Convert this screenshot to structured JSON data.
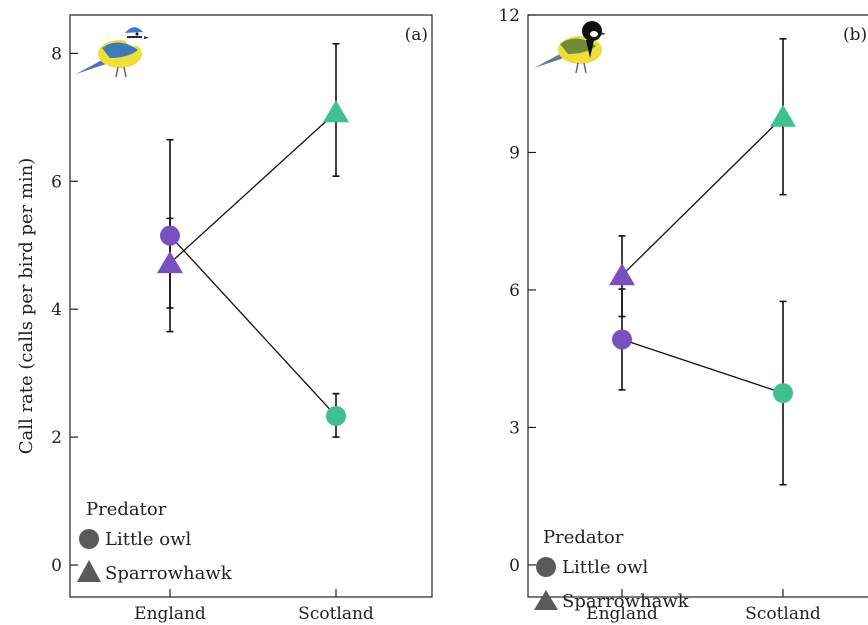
{
  "chart_data": [
    {
      "type": "scatter",
      "panel_label": "(a)",
      "ylabel": "Call rate (calls per bird per min)",
      "xlabel": "",
      "categories": [
        "England",
        "Scotland"
      ],
      "ylim": [
        -0.5,
        8.6
      ],
      "yticks": [
        0,
        2,
        4,
        6,
        8
      ],
      "grid": false,
      "legend": {
        "title": "Predator",
        "position": "bottom-left"
      },
      "series": [
        {
          "name": "Little owl",
          "marker": "circle",
          "values": [
            5.15,
            2.33
          ],
          "err_low": [
            3.65,
            2.0
          ],
          "err_high": [
            6.65,
            2.68
          ]
        },
        {
          "name": "Sparrowhawk",
          "marker": "triangle",
          "values": [
            4.72,
            7.08
          ],
          "err_low": [
            4.02,
            6.08
          ],
          "err_high": [
            5.42,
            8.15
          ]
        }
      ],
      "point_colors": {
        "England": "#7a4fbf",
        "Scotland": "#3fc08f"
      },
      "bird_icon": "blue-tit-icon"
    },
    {
      "type": "scatter",
      "panel_label": "(b)",
      "ylabel": "",
      "xlabel": "",
      "categories": [
        "England",
        "Scotland"
      ],
      "ylim": [
        -0.7,
        12.0
      ],
      "yticks": [
        0,
        3,
        6,
        9,
        12
      ],
      "grid": false,
      "legend": {
        "title": "Predator",
        "position": "bottom-left"
      },
      "series": [
        {
          "name": "Little owl",
          "marker": "circle",
          "values": [
            4.92,
            3.75
          ],
          "err_low": [
            3.82,
            1.75
          ],
          "err_high": [
            6.02,
            5.75
          ]
        },
        {
          "name": "Sparrowhawk",
          "marker": "triangle",
          "values": [
            6.32,
            9.78
          ],
          "err_low": [
            5.42,
            8.08
          ],
          "err_high": [
            7.18,
            11.48
          ]
        }
      ],
      "point_colors": {
        "England": "#7a4fbf",
        "Scotland": "#3fc08f"
      },
      "bird_icon": "great-tit-icon"
    }
  ],
  "legend_marker_color": "#5a5a5a",
  "colors": {
    "axis": "#222222",
    "line": "#111111"
  }
}
